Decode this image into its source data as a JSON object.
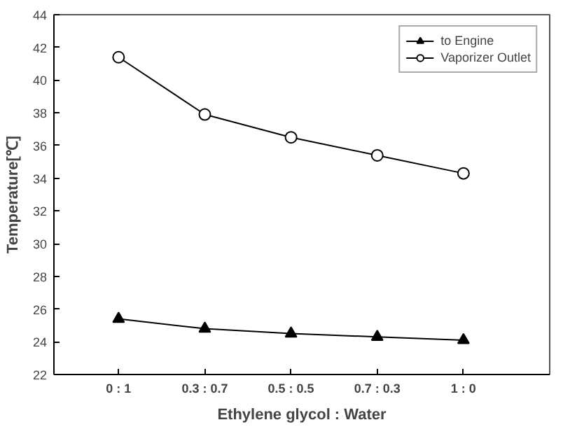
{
  "chart_data": {
    "type": "line",
    "xlabel": "Ethylene glycol : Water",
    "ylabel": "Temperature[℃]",
    "categories": [
      "0 : 1",
      "0.3 : 0.7",
      "0.5 : 0.5",
      "0.7 : 0.3",
      "1 : 0"
    ],
    "series": [
      {
        "name": "to Engine",
        "color": "#000000",
        "marker": "triangle",
        "values": [
          25.4,
          24.8,
          24.5,
          24.3,
          24.1
        ]
      },
      {
        "name": "Vaporizer Outlet",
        "color": "#000000",
        "marker": "circle",
        "values": [
          41.4,
          37.9,
          36.5,
          35.4,
          34.3
        ]
      }
    ],
    "ylim": [
      22,
      44
    ],
    "yticks": [
      22,
      24,
      26,
      28,
      30,
      32,
      34,
      36,
      38,
      40,
      42,
      44
    ],
    "grid": false,
    "legend": "top right",
    "line_style": "solid"
  }
}
